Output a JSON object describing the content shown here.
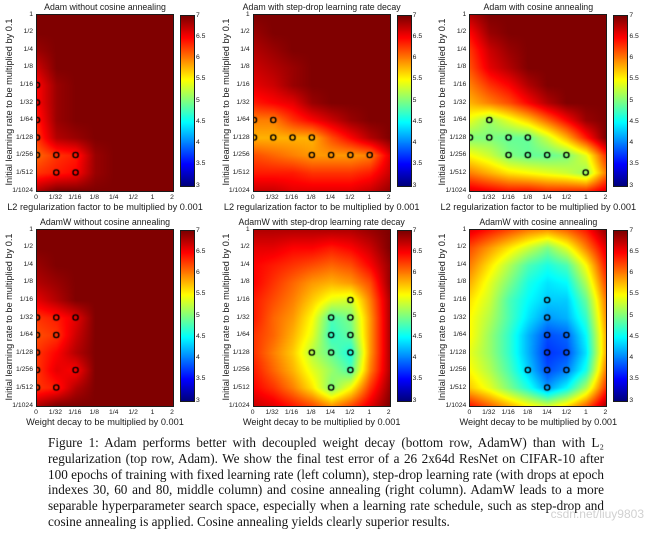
{
  "figure": {
    "caption": "Figure 1:  Adam performs better with decoupled weight decay (bottom row, AdamW) than with L₂ regularization (top row, Adam).  We show the final test error of a 26 2x64d ResNet on CIFAR-10 after 100 epochs of training with fixed learning rate (left column), step-drop learning rate (with drops at epoch indexes 30, 60 and 80, middle column) and cosine annealing (right column). AdamW leads to a more separable hyperparameter search space, especially when a learning rate schedule, such as step-drop and cosine annealing is applied. Cosine annealing yields clearly superior results.",
    "watermark": "csdn.net/liuy9803"
  },
  "chart_data": [
    {
      "type": "heatmap",
      "title": "Adam without cosine annealing",
      "xlabel": "L2 regularization factor to be multiplied by 0.001",
      "ylabel": "Initial learning rate to be multiplied by 0.1",
      "x_ticks": [
        "0",
        "1/32",
        "1/16",
        "1/8",
        "1/4",
        "1/2",
        "1",
        "2"
      ],
      "y_ticks": [
        "1",
        "1/2",
        "1/4",
        "1/8",
        "1/16",
        "1/32",
        "1/64",
        "1/128",
        "1/256",
        "1/512",
        "1/1024"
      ],
      "value_range": [
        3,
        7
      ],
      "colorbar_ticks": [
        "7",
        "6.5",
        "6",
        "5.5",
        "5",
        "4.5",
        "4",
        "3.5",
        "3"
      ],
      "colormap": "jet",
      "marker_color": "#000000",
      "values": [
        [
          7,
          7,
          7,
          7,
          7,
          7,
          7,
          7
        ],
        [
          7,
          7,
          7,
          7,
          7,
          7,
          7,
          7
        ],
        [
          6.9,
          7,
          7,
          7,
          7,
          7,
          7,
          7
        ],
        [
          6.7,
          7,
          7,
          7,
          7,
          7,
          7,
          7
        ],
        [
          6.5,
          6.9,
          7,
          7,
          7,
          7,
          7,
          7
        ],
        [
          6.5,
          6.9,
          7,
          7,
          7,
          7,
          7,
          7
        ],
        [
          6.4,
          6.9,
          7,
          7,
          7,
          7,
          7,
          7
        ],
        [
          6.3,
          6.8,
          6.9,
          7,
          7,
          7,
          7,
          7
        ],
        [
          6.1,
          6.3,
          6.4,
          6.9,
          7,
          7,
          7,
          7
        ],
        [
          6.3,
          6.4,
          6.5,
          6.9,
          7,
          7,
          7,
          7
        ],
        [
          6.8,
          7,
          7,
          7,
          7,
          7,
          7,
          7
        ]
      ],
      "markers": [
        [
          0,
          4
        ],
        [
          0,
          5
        ],
        [
          0,
          6
        ],
        [
          0,
          7
        ],
        [
          0,
          8
        ],
        [
          1,
          8
        ],
        [
          2,
          8
        ],
        [
          1,
          9
        ],
        [
          2,
          9
        ]
      ]
    },
    {
      "type": "heatmap",
      "title": "Adam with step-drop learning rate decay",
      "xlabel": "L2 regularization factor to be multiplied by 0.001",
      "ylabel": "Initial learning rate to be multiplied by 0.1",
      "x_ticks": [
        "0",
        "1/32",
        "1/16",
        "1/8",
        "1/4",
        "1/2",
        "1",
        "2"
      ],
      "y_ticks": [
        "1",
        "1/2",
        "1/4",
        "1/8",
        "1/16",
        "1/32",
        "1/64",
        "1/128",
        "1/256",
        "1/512",
        "1/1024"
      ],
      "value_range": [
        3,
        7
      ],
      "colorbar_ticks": [
        "7",
        "6.5",
        "6",
        "5.5",
        "5",
        "4.5",
        "4",
        "3.5",
        "3"
      ],
      "colormap": "jet",
      "marker_color": "#000000",
      "values": [
        [
          7,
          7,
          7,
          7,
          7,
          7,
          7,
          7
        ],
        [
          6.9,
          7,
          7,
          7,
          7,
          7,
          7,
          7
        ],
        [
          6.8,
          6.9,
          7,
          7,
          7,
          7,
          7,
          7
        ],
        [
          6.7,
          6.8,
          6.9,
          7,
          7,
          7,
          7,
          7
        ],
        [
          6.6,
          6.7,
          6.9,
          7,
          7,
          7,
          7,
          7
        ],
        [
          6.4,
          6.5,
          6.6,
          6.9,
          7,
          7,
          7,
          7
        ],
        [
          6.0,
          6.0,
          6.3,
          6.5,
          6.7,
          6.9,
          7,
          7
        ],
        [
          5.8,
          5.8,
          5.8,
          5.8,
          6.2,
          6.5,
          6.8,
          7
        ],
        [
          6.2,
          6.1,
          6.0,
          5.9,
          5.9,
          5.9,
          6.0,
          6.6
        ],
        [
          6.4,
          6.4,
          6.4,
          6.3,
          6.3,
          6.3,
          6.4,
          6.7
        ],
        [
          6.7,
          6.7,
          6.6,
          6.6,
          6.6,
          6.6,
          6.7,
          6.9
        ]
      ],
      "markers": [
        [
          0,
          6
        ],
        [
          1,
          6
        ],
        [
          0,
          7
        ],
        [
          1,
          7
        ],
        [
          2,
          7
        ],
        [
          3,
          7
        ],
        [
          3,
          8
        ],
        [
          4,
          8
        ],
        [
          5,
          8
        ],
        [
          6,
          8
        ]
      ]
    },
    {
      "type": "heatmap",
      "title": "Adam with cosine annealing",
      "xlabel": "L2 regularization factor to be multiplied by 0.001",
      "ylabel": "Initial learning rate to be multiplied by 0.1",
      "x_ticks": [
        "0",
        "1/32",
        "1/16",
        "1/8",
        "1/4",
        "1/2",
        "1",
        "2"
      ],
      "y_ticks": [
        "1",
        "1/2",
        "1/4",
        "1/8",
        "1/16",
        "1/32",
        "1/64",
        "1/128",
        "1/256",
        "1/512",
        "1/1024"
      ],
      "value_range": [
        3,
        7
      ],
      "colorbar_ticks": [
        "7",
        "6.5",
        "6",
        "5.5",
        "5",
        "4.5",
        "4",
        "3.5",
        "3"
      ],
      "colormap": "jet",
      "marker_color": "#000000",
      "values": [
        [
          6.8,
          7,
          7,
          7,
          7,
          7,
          7,
          7
        ],
        [
          6.5,
          6.9,
          7,
          7,
          7,
          7,
          7,
          7
        ],
        [
          6.3,
          6.7,
          6.9,
          7,
          7,
          7,
          7,
          7
        ],
        [
          6.2,
          6.6,
          6.8,
          7,
          7,
          7,
          7,
          7
        ],
        [
          6.0,
          6.3,
          6.5,
          6.8,
          7,
          7,
          7,
          7
        ],
        [
          5.8,
          6.0,
          6.2,
          6.5,
          6.8,
          7,
          7,
          7
        ],
        [
          5.4,
          5.1,
          5.4,
          5.7,
          6.1,
          6.5,
          6.9,
          7
        ],
        [
          5.0,
          5.0,
          4.9,
          4.9,
          5.3,
          5.8,
          6.4,
          7
        ],
        [
          5.5,
          5.3,
          5.0,
          4.9,
          4.9,
          5.0,
          5.4,
          6.3
        ],
        [
          6.0,
          5.8,
          5.6,
          5.5,
          5.4,
          5.3,
          5.1,
          6.0
        ],
        [
          6.6,
          6.5,
          6.4,
          6.4,
          6.3,
          6.3,
          6.3,
          6.6
        ]
      ],
      "markers": [
        [
          1,
          6
        ],
        [
          0,
          7
        ],
        [
          1,
          7
        ],
        [
          2,
          7
        ],
        [
          3,
          7
        ],
        [
          2,
          8
        ],
        [
          3,
          8
        ],
        [
          4,
          8
        ],
        [
          5,
          8
        ],
        [
          6,
          9
        ]
      ]
    },
    {
      "type": "heatmap",
      "title": "AdamW without cosine annealing",
      "xlabel": "Weight decay to be multiplied by 0.001",
      "ylabel": "Initial learning rate to be multiplied by 0.1",
      "x_ticks": [
        "0",
        "1/32",
        "1/16",
        "1/8",
        "1/4",
        "1/2",
        "1",
        "2"
      ],
      "y_ticks": [
        "1",
        "1/2",
        "1/4",
        "1/8",
        "1/16",
        "1/32",
        "1/64",
        "1/128",
        "1/256",
        "1/512",
        "1/1024"
      ],
      "value_range": [
        3,
        7
      ],
      "colorbar_ticks": [
        "7",
        "6.5",
        "6",
        "5.5",
        "5",
        "4.5",
        "4",
        "3.5",
        "3"
      ],
      "colormap": "jet",
      "marker_color": "#000000",
      "values": [
        [
          7,
          7,
          7,
          7,
          7,
          7,
          7,
          7
        ],
        [
          7,
          7,
          7,
          7,
          7,
          7,
          7,
          7
        ],
        [
          6.9,
          7,
          7,
          7,
          7,
          7,
          7,
          7
        ],
        [
          6.8,
          6.9,
          7,
          7,
          7,
          7,
          7,
          7
        ],
        [
          6.6,
          6.8,
          7,
          7,
          7,
          7,
          7,
          7
        ],
        [
          6.3,
          6.4,
          6.6,
          7,
          7,
          7,
          7,
          7
        ],
        [
          6.2,
          6.3,
          6.7,
          7,
          7,
          7,
          7,
          7
        ],
        [
          6.3,
          6.5,
          6.8,
          7,
          7,
          7,
          7,
          7
        ],
        [
          6.3,
          6.6,
          6.5,
          7,
          7,
          7,
          7,
          7
        ],
        [
          6.3,
          6.4,
          6.8,
          7,
          7,
          7,
          7,
          7
        ],
        [
          6.8,
          7,
          7,
          7,
          7,
          7,
          7,
          7
        ]
      ],
      "markers": [
        [
          0,
          5
        ],
        [
          1,
          5
        ],
        [
          2,
          5
        ],
        [
          0,
          6
        ],
        [
          1,
          6
        ],
        [
          0,
          7
        ],
        [
          0,
          8
        ],
        [
          2,
          8
        ],
        [
          0,
          9
        ],
        [
          1,
          9
        ]
      ]
    },
    {
      "type": "heatmap",
      "title": "AdamW with step-drop learning rate decay",
      "xlabel": "Weight decay to be multiplied by 0.001",
      "ylabel": "Initial learning rate to be multiplied by 0.1",
      "x_ticks": [
        "0",
        "1/32",
        "1/16",
        "1/8",
        "1/4",
        "1/2",
        "1",
        "2"
      ],
      "y_ticks": [
        "1",
        "1/2",
        "1/4",
        "1/8",
        "1/16",
        "1/32",
        "1/64",
        "1/128",
        "1/256",
        "1/512",
        "1/1024"
      ],
      "value_range": [
        3,
        7
      ],
      "colorbar_ticks": [
        "7",
        "6.5",
        "6",
        "5.5",
        "5",
        "4.5",
        "4",
        "3.5",
        "3"
      ],
      "colormap": "jet",
      "marker_color": "#000000",
      "values": [
        [
          6.8,
          6.8,
          6.8,
          6.8,
          6.8,
          6.8,
          6.9,
          7
        ],
        [
          6.6,
          6.6,
          6.5,
          6.5,
          6.4,
          6.5,
          6.7,
          7
        ],
        [
          6.5,
          6.4,
          6.3,
          6.2,
          6.1,
          6.2,
          6.5,
          6.9
        ],
        [
          6.5,
          6.3,
          6.1,
          5.9,
          5.8,
          5.9,
          6.2,
          6.9
        ],
        [
          6.4,
          6.2,
          6.0,
          5.7,
          5.4,
          5.3,
          6.0,
          6.8
        ],
        [
          6.4,
          6.1,
          5.9,
          5.5,
          4.8,
          5.0,
          5.9,
          6.8
        ],
        [
          6.3,
          6.1,
          5.8,
          5.4,
          4.7,
          4.9,
          5.9,
          6.8
        ],
        [
          6.3,
          6.0,
          5.7,
          5.2,
          4.9,
          4.6,
          5.9,
          6.8
        ],
        [
          6.4,
          6.1,
          5.8,
          5.4,
          5.1,
          4.8,
          6.0,
          6.8
        ],
        [
          6.5,
          6.3,
          6.0,
          5.6,
          5.0,
          5.5,
          6.3,
          6.9
        ],
        [
          6.7,
          6.6,
          6.4,
          6.2,
          5.9,
          6.2,
          6.6,
          7
        ]
      ],
      "markers": [
        [
          5,
          4
        ],
        [
          4,
          5
        ],
        [
          5,
          5
        ],
        [
          4,
          6
        ],
        [
          5,
          6
        ],
        [
          3,
          7
        ],
        [
          4,
          7
        ],
        [
          5,
          7
        ],
        [
          5,
          8
        ],
        [
          4,
          9
        ]
      ]
    },
    {
      "type": "heatmap",
      "title": "AdamW with cosine annealing",
      "xlabel": "Weight decay to be multiplied by 0.001",
      "ylabel": "Initial learning rate to be multiplied by 0.1",
      "x_ticks": [
        "0",
        "1/32",
        "1/16",
        "1/8",
        "1/4",
        "1/2",
        "1",
        "2"
      ],
      "y_ticks": [
        "1",
        "1/2",
        "1/4",
        "1/8",
        "1/16",
        "1/32",
        "1/64",
        "1/128",
        "1/256",
        "1/512",
        "1/1024"
      ],
      "value_range": [
        3,
        7
      ],
      "colorbar_ticks": [
        "7",
        "6.5",
        "6",
        "5.5",
        "5",
        "4.5",
        "4",
        "3.5",
        "3"
      ],
      "colormap": "jet",
      "marker_color": "#000000",
      "values": [
        [
          6.6,
          6.4,
          6.2,
          6.0,
          5.9,
          6.1,
          6.4,
          6.9
        ],
        [
          6.2,
          5.9,
          5.6,
          5.3,
          5.0,
          5.4,
          6.0,
          6.6
        ],
        [
          6.0,
          5.6,
          5.2,
          4.8,
          4.6,
          4.8,
          5.5,
          6.4
        ],
        [
          5.8,
          5.4,
          5.0,
          4.6,
          4.4,
          4.5,
          5.2,
          6.2
        ],
        [
          5.6,
          5.3,
          4.8,
          4.5,
          4.3,
          4.3,
          4.9,
          6.0
        ],
        [
          5.5,
          5.2,
          4.8,
          4.4,
          4.1,
          4.2,
          4.7,
          5.9
        ],
        [
          5.5,
          5.1,
          4.7,
          4.2,
          3.8,
          3.9,
          4.5,
          5.8
        ],
        [
          5.4,
          5.1,
          4.7,
          4.2,
          3.7,
          3.8,
          4.4,
          5.8
        ],
        [
          5.5,
          5.2,
          4.8,
          4.3,
          3.8,
          4.0,
          4.6,
          6.0
        ],
        [
          5.7,
          5.4,
          5.0,
          4.6,
          4.1,
          4.5,
          5.2,
          6.3
        ],
        [
          6.4,
          6.1,
          5.8,
          5.5,
          5.3,
          5.6,
          6.1,
          6.8
        ]
      ],
      "markers": [
        [
          4,
          4
        ],
        [
          4,
          5
        ],
        [
          4,
          6
        ],
        [
          5,
          6
        ],
        [
          4,
          7
        ],
        [
          5,
          7
        ],
        [
          3,
          8
        ],
        [
          4,
          8
        ],
        [
          5,
          8
        ],
        [
          4,
          9
        ]
      ]
    }
  ]
}
